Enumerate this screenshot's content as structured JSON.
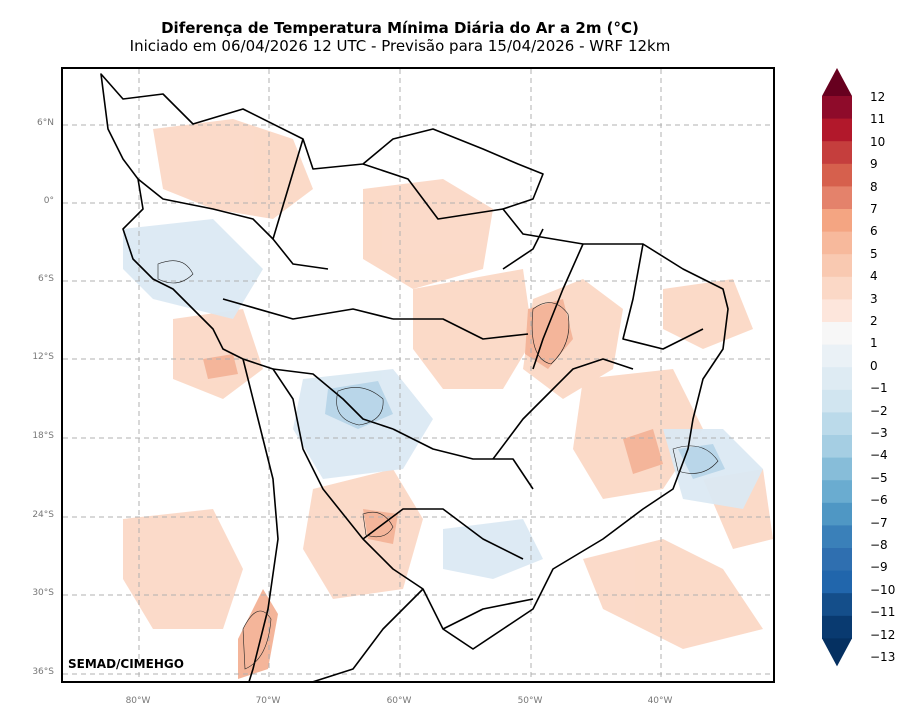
{
  "header": {
    "title": "Diferença de Temperatura Mínima Diária do Ar a 2m (°C)",
    "subtitle": "Iniciado em 06/04/2026 12 UTC - Previsão para 15/04/2026 - WRF 12km"
  },
  "map": {
    "lat_labels": [
      "6°N",
      "0°",
      "6°S",
      "12°S",
      "18°S",
      "24°S",
      "30°S",
      "36°S"
    ],
    "lon_labels": [
      "80°W",
      "70°W",
      "60°W",
      "50°W",
      "40°W"
    ],
    "credit": "SEMAD/CIMEHGO"
  },
  "colorbar": {
    "ticks": [
      "12",
      "11",
      "10",
      "9",
      "8",
      "7",
      "6",
      "5",
      "4",
      "3",
      "2",
      "1",
      "0",
      "−1",
      "−2",
      "−3",
      "−4",
      "−5",
      "−6",
      "−7",
      "−8",
      "−9",
      "−10",
      "−11",
      "−12",
      "−13"
    ],
    "colors": [
      "#67001f",
      "#8e0b2a",
      "#b2182b",
      "#c53e3d",
      "#d6604d",
      "#e4826b",
      "#f4a582",
      "#f7b99c",
      "#f9c9b1",
      "#fbd8c6",
      "#fde6dc",
      "#f7f7f7",
      "#eaf1f6",
      "#deebf3",
      "#d1e5f0",
      "#bbdaea",
      "#a5cee3",
      "#87bdd9",
      "#6aacd0",
      "#4f97c4",
      "#3a80b9",
      "#2f6fb0",
      "#2166ac",
      "#144e8a",
      "#093a70",
      "#053061"
    ]
  },
  "colors": {
    "warm_light": "#fbd6c3",
    "warm_mid": "#f4b59a",
    "cool_light": "#dbe9f3",
    "cool_mid": "#b9d6e9",
    "grid": "#b0b0b0",
    "border": "#000000"
  }
}
